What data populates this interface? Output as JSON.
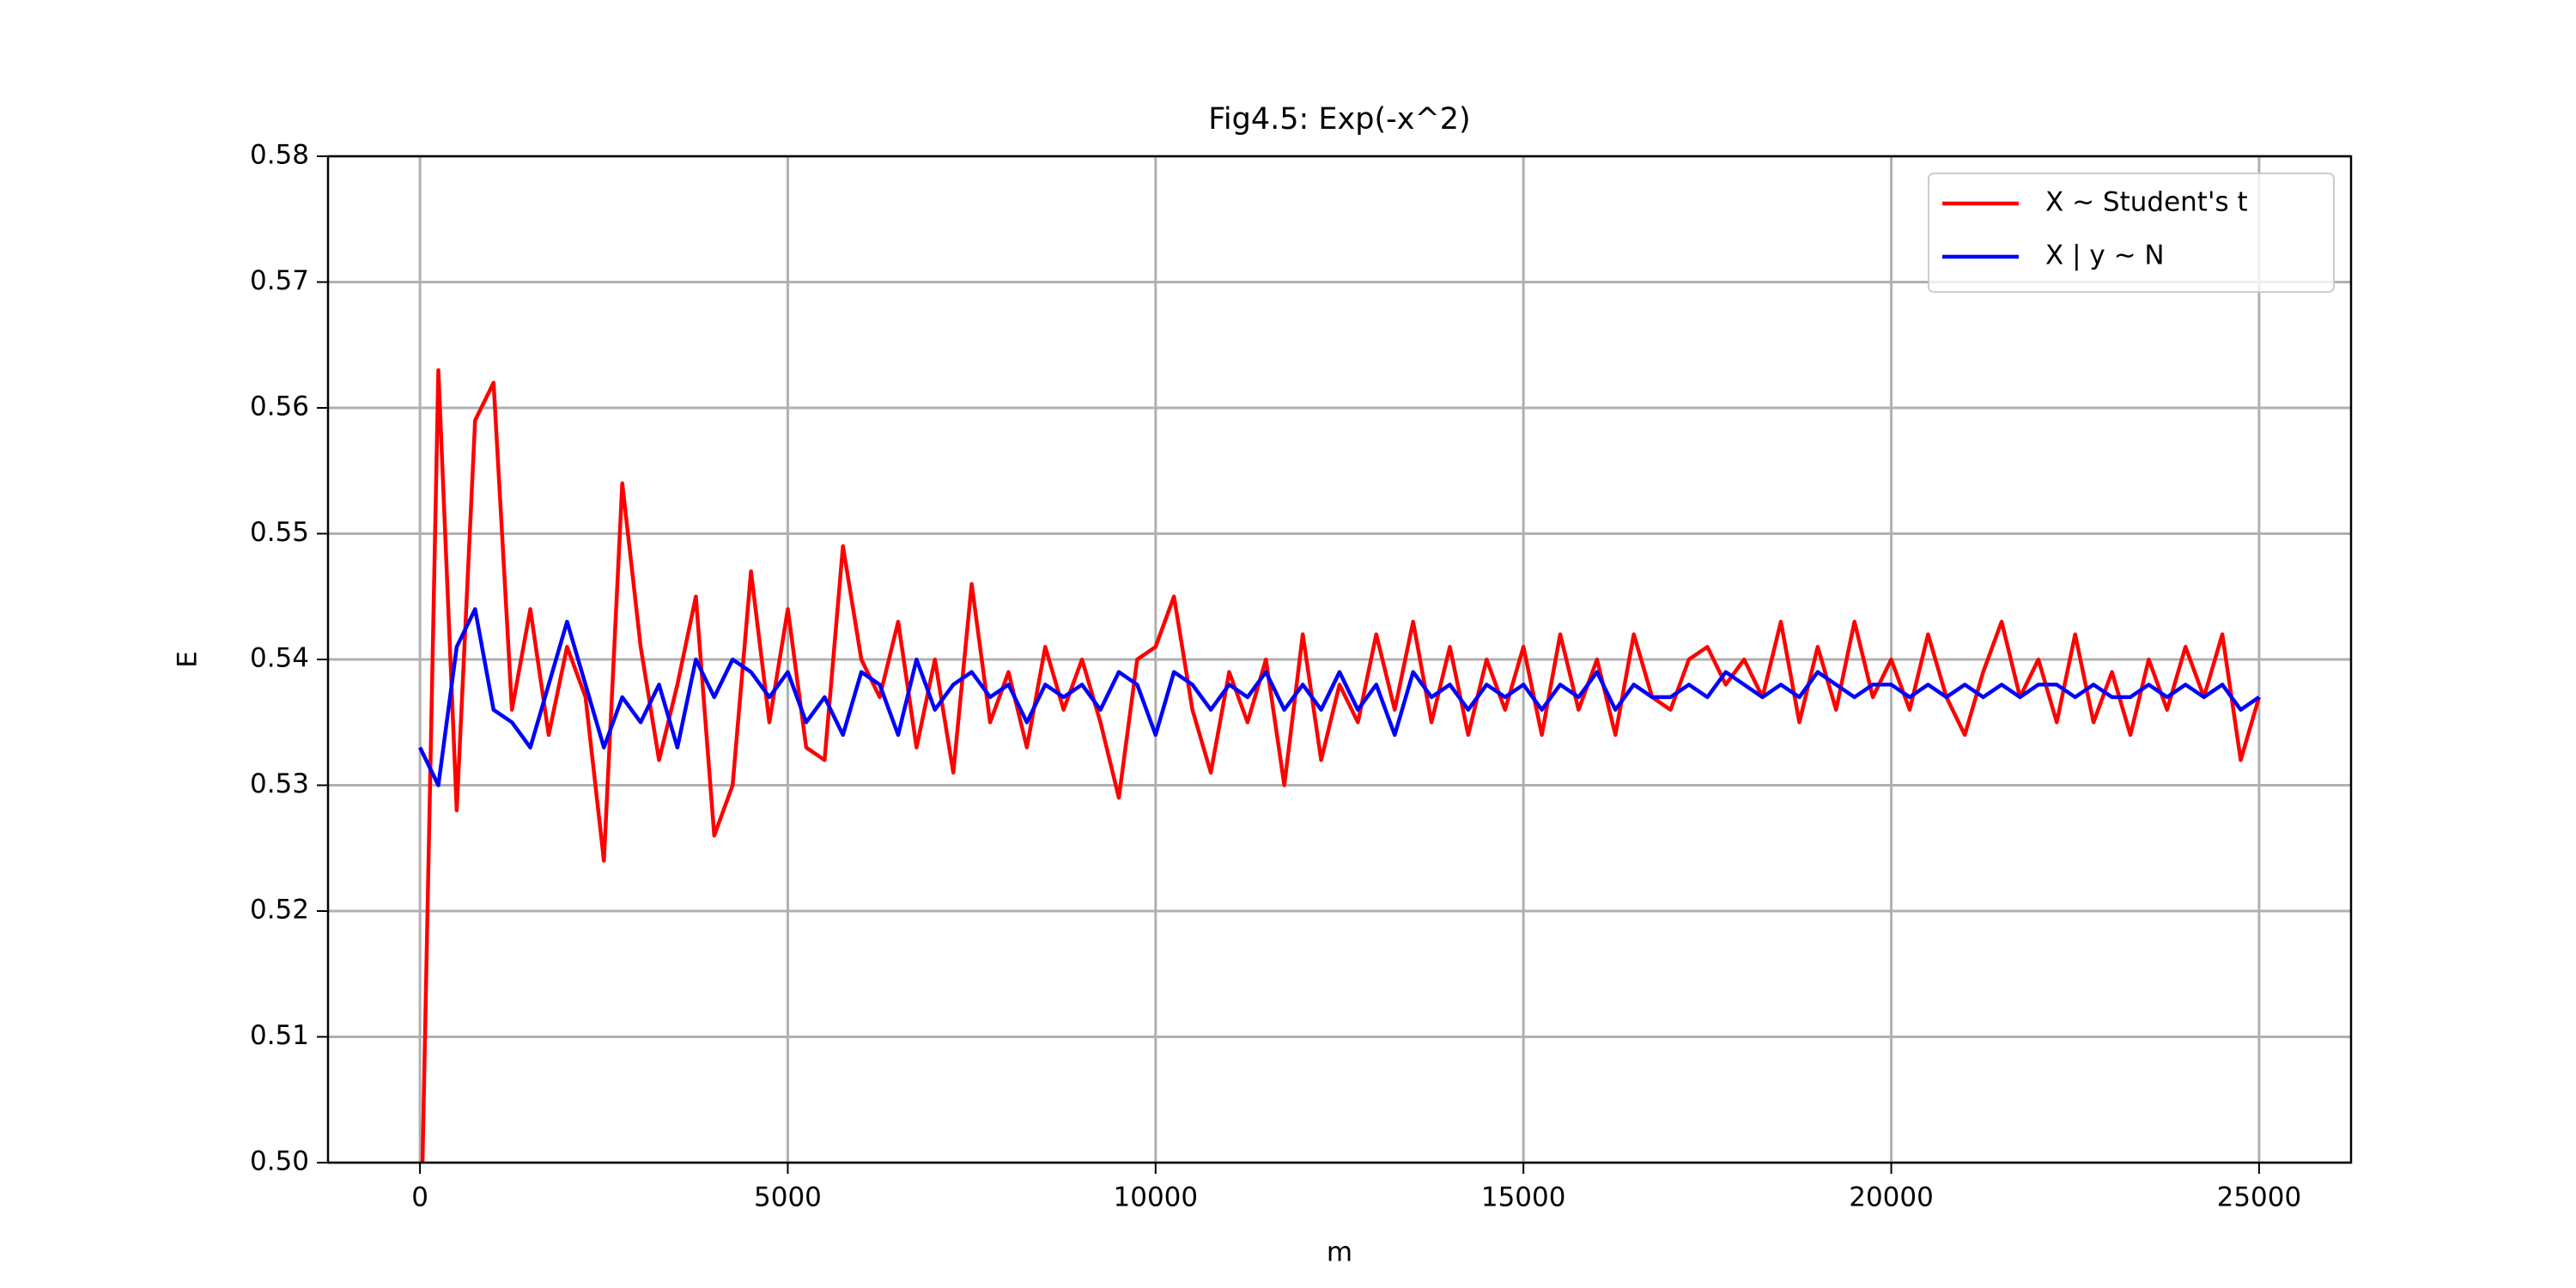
{
  "chart_data": {
    "type": "line",
    "title": "Fig4.5: Exp(-x^2)",
    "xlabel": "m",
    "ylabel": "E",
    "x": [
      0,
      250,
      500,
      750,
      1000,
      1250,
      1500,
      1750,
      2000,
      2250,
      2500,
      2750,
      3000,
      3250,
      3500,
      3750,
      4000,
      4250,
      4500,
      4750,
      5000,
      5250,
      5500,
      5750,
      6000,
      6250,
      6500,
      6750,
      7000,
      7250,
      7500,
      7750,
      8000,
      8250,
      8500,
      8750,
      9000,
      9250,
      9500,
      9750,
      10000,
      10250,
      10500,
      10750,
      11000,
      11250,
      11500,
      11750,
      12000,
      12250,
      12500,
      12750,
      13000,
      13250,
      13500,
      13750,
      14000,
      14250,
      14500,
      14750,
      15000,
      15250,
      15500,
      15750,
      16000,
      16250,
      16500,
      16750,
      17000,
      17250,
      17500,
      17750,
      18000,
      18250,
      18500,
      18750,
      19000,
      19250,
      19500,
      19750,
      20000,
      20250,
      20500,
      20750,
      21000,
      21250,
      21500,
      21750,
      22000,
      22250,
      22500,
      22750,
      23000,
      23250,
      23500,
      23750,
      24000,
      24250,
      24500,
      24750,
      25000
    ],
    "series": [
      {
        "name": "X ~ Student's t",
        "color": "#ff0000",
        "values": [
          0.49,
          0.563,
          0.528,
          0.559,
          0.562,
          0.536,
          0.544,
          0.534,
          0.541,
          0.537,
          0.524,
          0.554,
          0.541,
          0.532,
          0.538,
          0.545,
          0.526,
          0.53,
          0.547,
          0.535,
          0.544,
          0.533,
          0.532,
          0.549,
          0.54,
          0.537,
          0.543,
          0.533,
          0.54,
          0.531,
          0.546,
          0.535,
          0.539,
          0.533,
          0.541,
          0.536,
          0.54,
          0.535,
          0.529,
          0.54,
          0.541,
          0.545,
          0.536,
          0.531,
          0.539,
          0.535,
          0.54,
          0.53,
          0.542,
          0.532,
          0.538,
          0.535,
          0.542,
          0.536,
          0.543,
          0.535,
          0.541,
          0.534,
          0.54,
          0.536,
          0.541,
          0.534,
          0.542,
          0.536,
          0.54,
          0.534,
          0.542,
          0.537,
          0.536,
          0.54,
          0.541,
          0.538,
          0.54,
          0.537,
          0.543,
          0.535,
          0.541,
          0.536,
          0.543,
          0.537,
          0.54,
          0.536,
          0.542,
          0.537,
          0.534,
          0.539,
          0.543,
          0.537,
          0.54,
          0.535,
          0.542,
          0.535,
          0.539,
          0.534,
          0.54,
          0.536,
          0.541,
          0.537,
          0.542,
          0.532,
          0.537
        ]
      },
      {
        "name": "X | y ~ N",
        "color": "#0000ff",
        "values": [
          0.533,
          0.53,
          0.541,
          0.544,
          0.536,
          0.535,
          0.533,
          0.538,
          0.543,
          0.538,
          0.533,
          0.537,
          0.535,
          0.538,
          0.533,
          0.54,
          0.537,
          0.54,
          0.539,
          0.537,
          0.539,
          0.535,
          0.537,
          0.534,
          0.539,
          0.538,
          0.534,
          0.54,
          0.536,
          0.538,
          0.539,
          0.537,
          0.538,
          0.535,
          0.538,
          0.537,
          0.538,
          0.536,
          0.539,
          0.538,
          0.534,
          0.539,
          0.538,
          0.536,
          0.538,
          0.537,
          0.539,
          0.536,
          0.538,
          0.536,
          0.539,
          0.536,
          0.538,
          0.534,
          0.539,
          0.537,
          0.538,
          0.536,
          0.538,
          0.537,
          0.538,
          0.536,
          0.538,
          0.537,
          0.539,
          0.536,
          0.538,
          0.537,
          0.537,
          0.538,
          0.537,
          0.539,
          0.538,
          0.537,
          0.538,
          0.537,
          0.539,
          0.538,
          0.537,
          0.538,
          0.538,
          0.537,
          0.538,
          0.537,
          0.538,
          0.537,
          0.538,
          0.537,
          0.538,
          0.538,
          0.537,
          0.538,
          0.537,
          0.537,
          0.538,
          0.537,
          0.538,
          0.537,
          0.538,
          0.536,
          0.537
        ]
      }
    ],
    "xlim": [
      -1250,
      26250
    ],
    "xticks": [
      0,
      5000,
      10000,
      15000,
      20000,
      25000
    ],
    "ylim": [
      0.5,
      0.58
    ],
    "yticks": [
      {
        "value": 0.5,
        "label": "0.50"
      },
      0.51,
      0.52,
      0.53,
      0.54,
      0.55,
      0.56,
      0.57,
      0.58
    ],
    "grid": true,
    "legend": "upper right"
  }
}
